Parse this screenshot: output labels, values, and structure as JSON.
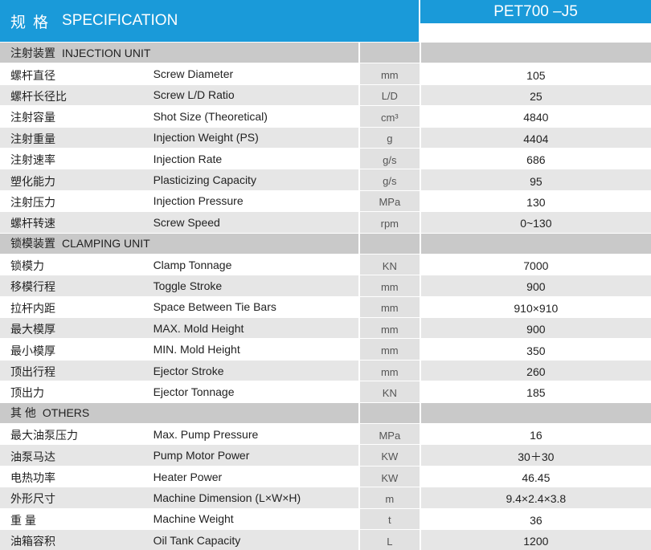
{
  "header": {
    "title_cn": "规格",
    "title_en": "SPECIFICATION",
    "model": "PET700 –J5"
  },
  "sections": [
    {
      "title_cn": "注射装置",
      "title_en": "INJECTION UNIT",
      "rows": [
        {
          "cn": "螺杆直径",
          "en": "Screw Diameter",
          "unit": "mm",
          "value": "105"
        },
        {
          "cn": "螺杆长径比",
          "en": "Screw L/D Ratio",
          "unit": "L/D",
          "value": "25"
        },
        {
          "cn": "注射容量",
          "en": "Shot Size (Theoretical)",
          "unit": "cm³",
          "value": "4840"
        },
        {
          "cn": "注射重量",
          "en": "Injection Weight (PS)",
          "unit": "g",
          "value": "4404"
        },
        {
          "cn": "注射速率",
          "en": "Injection Rate",
          "unit": "g/s",
          "value": "686"
        },
        {
          "cn": "塑化能力",
          "en": "Plasticizing Capacity",
          "unit": "g/s",
          "value": "95"
        },
        {
          "cn": "注射压力",
          "en": "Injection Pressure",
          "unit": "MPa",
          "value": "130"
        },
        {
          "cn": "螺杆转速",
          "en": "Screw Speed",
          "unit": "rpm",
          "value": "0~130"
        }
      ]
    },
    {
      "title_cn": "锁模装置",
      "title_en": "CLAMPING UNIT",
      "rows": [
        {
          "cn": "锁模力",
          "en": "Clamp Tonnage",
          "unit": "KN",
          "value": "7000"
        },
        {
          "cn": "移模行程",
          "en": "Toggle Stroke",
          "unit": "mm",
          "value": "900"
        },
        {
          "cn": "拉杆内距",
          "en": "Space Between Tie Bars",
          "unit": "mm",
          "value": "910×910"
        },
        {
          "cn": "最大模厚",
          "en": "MAX. Mold Height",
          "unit": "mm",
          "value": "900"
        },
        {
          "cn": "最小模厚",
          "en": "MIN. Mold Height",
          "unit": "mm",
          "value": "350"
        },
        {
          "cn": "顶出行程",
          "en": "Ejector Stroke",
          "unit": "mm",
          "value": "260"
        },
        {
          "cn": "顶出力",
          "en": "Ejector Tonnage",
          "unit": "KN",
          "value": "185"
        }
      ]
    },
    {
      "title_cn": "其 他",
      "title_en": "OTHERS",
      "rows": [
        {
          "cn": "最大油泵压力",
          "en": "Max. Pump Pressure",
          "unit": "MPa",
          "value": "16"
        },
        {
          "cn": "油泵马达",
          "en": "Pump Motor Power",
          "unit": "KW",
          "value": "30＋30"
        },
        {
          "cn": "电热功率",
          "en": "Heater Power",
          "unit": "KW",
          "value": "46.45"
        },
        {
          "cn": "外形尺寸",
          "en": "Machine Dimension (L×W×H)",
          "unit": "m",
          "value": "9.4×2.4×3.8"
        },
        {
          "cn": "重  量",
          "en": "Machine Weight",
          "unit": "t",
          "value": "36"
        },
        {
          "cn": "油箱容积",
          "en": "Oil Tank Capacity",
          "unit": "L",
          "value": "1200"
        }
      ]
    }
  ]
}
